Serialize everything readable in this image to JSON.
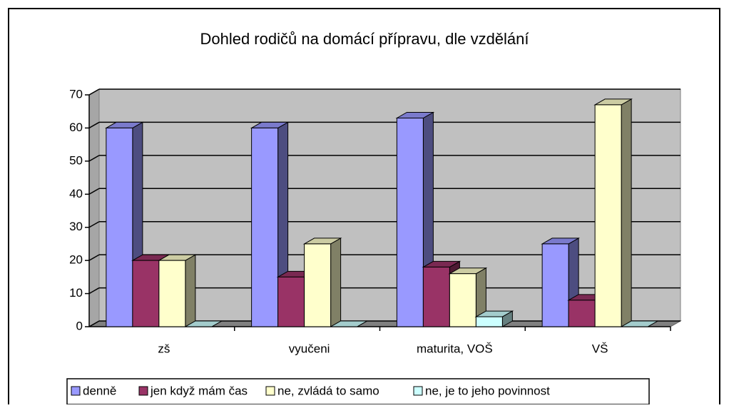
{
  "chart_data": {
    "type": "bar3d",
    "title": "Dohled rodičů na domácí přípravu, dle vzdělání",
    "categories": [
      "zš",
      "vyučeni",
      "maturita, VOŠ",
      "VŠ"
    ],
    "series": [
      {
        "name": "denně",
        "color": "#9999ff",
        "values": [
          60,
          60,
          63,
          25
        ]
      },
      {
        "name": "jen když mám čas",
        "color": "#993366",
        "values": [
          20,
          15,
          18,
          8
        ]
      },
      {
        "name": "ne, zvládá to samo",
        "color": "#ffffcc",
        "values": [
          20,
          25,
          16,
          67
        ]
      },
      {
        "name": "ne, je to jeho povinnost",
        "color": "#ccffff",
        "values": [
          0,
          0,
          3,
          0
        ]
      }
    ],
    "ylim": [
      0,
      70
    ],
    "yticks": [
      0,
      10,
      20,
      30,
      40,
      50,
      60,
      70
    ],
    "grid": true,
    "legend": "bottom"
  }
}
